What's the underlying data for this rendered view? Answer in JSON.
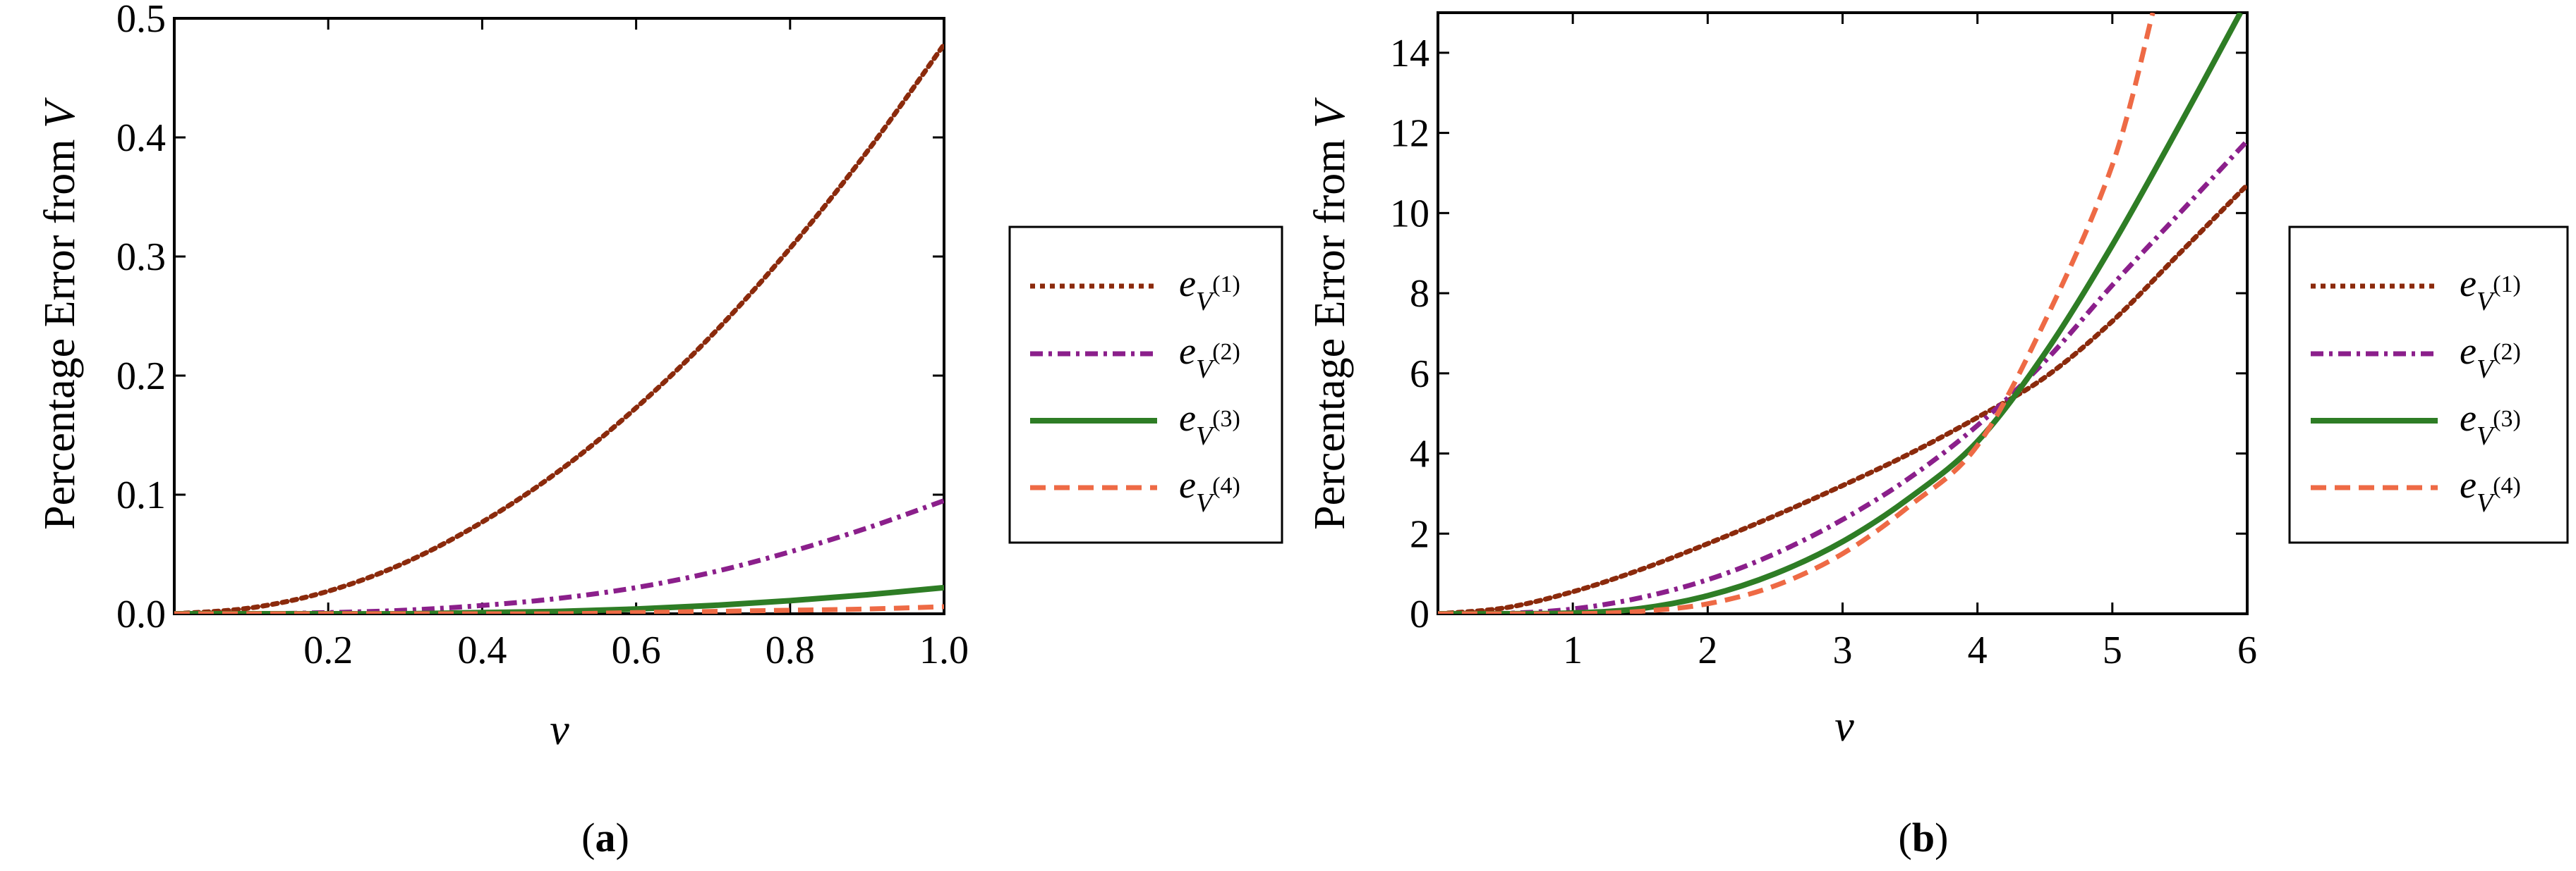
{
  "colors": {
    "s1": "#8B2A0C",
    "s2": "#8B1F8B",
    "s3": "#2E7D25",
    "s4": "#EE6A45"
  },
  "legend_entries": [
    {
      "id": "s1",
      "base": "e",
      "sub_base": "V",
      "sup": "(1)",
      "dash": "dotted"
    },
    {
      "id": "s2",
      "base": "e",
      "sub_base": "V",
      "sup": "(2)",
      "dash": "dashdot"
    },
    {
      "id": "s3",
      "base": "e",
      "sub_base": "V",
      "sup": "(3)",
      "dash": "solid"
    },
    {
      "id": "s4",
      "base": "e",
      "sub_base": "V",
      "sup": "(4)",
      "dash": "dashed"
    }
  ],
  "chart_data": [
    {
      "type": "line",
      "panel_label": "(a)",
      "panel_letter": "a",
      "xlabel": "ν",
      "ylabel": "Percentage Error from V",
      "ylabel_prefix": "Percentage Error from ",
      "ylabel_italic": "V",
      "xlim": [
        0,
        1.0
      ],
      "ylim": [
        0,
        0.5
      ],
      "xticks": [
        0.2,
        0.4,
        0.6,
        0.8,
        1.0
      ],
      "xtick_labels": [
        "0.2",
        "0.4",
        "0.6",
        "0.8",
        "1.0"
      ],
      "yticks": [
        0.0,
        0.1,
        0.2,
        0.3,
        0.4,
        0.5
      ],
      "ytick_labels": [
        "0.0",
        "0.1",
        "0.2",
        "0.3",
        "0.4",
        "0.5"
      ],
      "series": [
        {
          "name": "e_V(1)",
          "id": "s1",
          "x": [
            0,
            0.1,
            0.2,
            0.3,
            0.4,
            0.5,
            0.6,
            0.7,
            0.8,
            0.9,
            1.0
          ],
          "y": [
            0,
            0.005,
            0.019,
            0.043,
            0.077,
            0.12,
            0.173,
            0.235,
            0.307,
            0.388,
            0.478
          ]
        },
        {
          "name": "e_V(2)",
          "id": "s2",
          "x": [
            0,
            0.1,
            0.2,
            0.3,
            0.4,
            0.5,
            0.6,
            0.7,
            0.8,
            0.9,
            1.0
          ],
          "y": [
            0,
            0.0,
            0.001,
            0.003,
            0.007,
            0.013,
            0.022,
            0.035,
            0.052,
            0.072,
            0.095
          ]
        },
        {
          "name": "e_V(3)",
          "id": "s3",
          "x": [
            0,
            0.1,
            0.2,
            0.3,
            0.4,
            0.5,
            0.6,
            0.7,
            0.8,
            0.9,
            1.0
          ],
          "y": [
            0,
            0.0,
            0.0,
            0.0,
            0.001,
            0.002,
            0.004,
            0.007,
            0.011,
            0.016,
            0.022
          ]
        },
        {
          "name": "e_V(4)",
          "id": "s4",
          "x": [
            0,
            0.1,
            0.2,
            0.3,
            0.4,
            0.5,
            0.6,
            0.7,
            0.8,
            0.9,
            1.0
          ],
          "y": [
            0,
            0.0,
            0.0,
            0.0,
            0.0,
            0.0,
            0.001,
            0.002,
            0.003,
            0.004,
            0.006
          ]
        }
      ]
    },
    {
      "type": "line",
      "panel_label": "(b)",
      "panel_letter": "b",
      "xlabel": "ν",
      "ylabel": "Percentage Error from V",
      "ylabel_prefix": "Percentage Error from ",
      "ylabel_italic": "V",
      "xlim": [
        0,
        6
      ],
      "ylim": [
        0,
        15
      ],
      "xticks": [
        1,
        2,
        3,
        4,
        5,
        6
      ],
      "xtick_labels": [
        "1",
        "2",
        "3",
        "4",
        "5",
        "6"
      ],
      "yticks": [
        0,
        2,
        4,
        6,
        8,
        10,
        12,
        14
      ],
      "ytick_labels": [
        "0",
        "2",
        "4",
        "6",
        "8",
        "10",
        "12",
        "14"
      ],
      "series": [
        {
          "name": "e_V(1)",
          "id": "s1",
          "x": [
            0,
            0.5,
            1,
            1.5,
            2,
            2.5,
            3,
            3.5,
            4,
            4.5,
            5,
            5.5,
            6
          ],
          "y": [
            0,
            0.15,
            0.55,
            1.1,
            1.75,
            2.45,
            3.2,
            4.0,
            4.9,
            5.9,
            7.3,
            9.0,
            10.7
          ]
        },
        {
          "name": "e_V(2)",
          "id": "s2",
          "x": [
            0,
            0.5,
            1,
            1.5,
            2,
            2.5,
            3,
            3.5,
            4,
            4.5,
            5,
            5.5,
            6
          ],
          "y": [
            0,
            0.01,
            0.12,
            0.4,
            0.85,
            1.5,
            2.35,
            3.4,
            4.7,
            6.3,
            8.2,
            10.0,
            11.8
          ]
        },
        {
          "name": "e_V(3)",
          "id": "s3",
          "x": [
            0,
            0.5,
            1,
            1.5,
            2,
            2.5,
            3,
            3.5,
            4,
            4.5,
            5,
            5.5,
            5.95
          ],
          "y": [
            0,
            0.0,
            0.02,
            0.13,
            0.45,
            1.0,
            1.8,
            2.9,
            4.3,
            6.5,
            9.2,
            12.2,
            15.0
          ]
        },
        {
          "name": "e_V(4)",
          "id": "s4",
          "x": [
            0,
            0.5,
            1,
            1.5,
            2,
            2.5,
            3,
            3.5,
            4,
            4.5,
            5,
            5.3
          ],
          "y": [
            0,
            0.0,
            0.0,
            0.06,
            0.25,
            0.7,
            1.5,
            2.7,
            4.2,
            7.3,
            11.2,
            15.0
          ]
        }
      ]
    }
  ]
}
